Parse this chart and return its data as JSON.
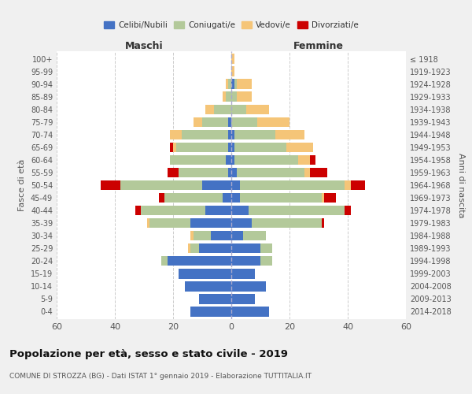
{
  "age_groups": [
    "0-4",
    "5-9",
    "10-14",
    "15-19",
    "20-24",
    "25-29",
    "30-34",
    "35-39",
    "40-44",
    "45-49",
    "50-54",
    "55-59",
    "60-64",
    "65-69",
    "70-74",
    "75-79",
    "80-84",
    "85-89",
    "90-94",
    "95-99",
    "100+"
  ],
  "birth_years": [
    "2014-2018",
    "2009-2013",
    "2004-2008",
    "1999-2003",
    "1994-1998",
    "1989-1993",
    "1984-1988",
    "1979-1983",
    "1974-1978",
    "1969-1973",
    "1964-1968",
    "1959-1963",
    "1954-1958",
    "1949-1953",
    "1944-1948",
    "1939-1943",
    "1934-1938",
    "1929-1933",
    "1924-1928",
    "1919-1923",
    "≤ 1918"
  ],
  "male": {
    "celibi": [
      14,
      11,
      16,
      18,
      22,
      11,
      7,
      14,
      9,
      3,
      10,
      1,
      2,
      1,
      1,
      1,
      0,
      0,
      0,
      0,
      0
    ],
    "coniugati": [
      0,
      0,
      0,
      0,
      2,
      3,
      6,
      14,
      22,
      20,
      28,
      17,
      19,
      18,
      16,
      9,
      6,
      2,
      1,
      0,
      0
    ],
    "vedovi": [
      0,
      0,
      0,
      0,
      0,
      1,
      1,
      1,
      0,
      0,
      0,
      0,
      0,
      1,
      4,
      3,
      3,
      1,
      1,
      0,
      0
    ],
    "divorziati": [
      0,
      0,
      0,
      0,
      0,
      0,
      0,
      0,
      2,
      2,
      7,
      4,
      0,
      1,
      0,
      0,
      0,
      0,
      0,
      0,
      0
    ]
  },
  "female": {
    "nubili": [
      13,
      8,
      12,
      8,
      10,
      10,
      4,
      7,
      6,
      3,
      3,
      2,
      1,
      1,
      1,
      0,
      0,
      0,
      1,
      0,
      0
    ],
    "coniugate": [
      0,
      0,
      0,
      0,
      4,
      4,
      8,
      24,
      33,
      28,
      36,
      23,
      22,
      18,
      14,
      9,
      5,
      2,
      1,
      0,
      0
    ],
    "vedove": [
      0,
      0,
      0,
      0,
      0,
      0,
      0,
      0,
      0,
      1,
      2,
      2,
      4,
      9,
      10,
      11,
      8,
      5,
      5,
      1,
      1
    ],
    "divorziate": [
      0,
      0,
      0,
      0,
      0,
      0,
      0,
      1,
      2,
      4,
      5,
      6,
      2,
      0,
      0,
      0,
      0,
      0,
      0,
      0,
      0
    ]
  },
  "colors": {
    "celibi": "#4472c4",
    "coniugati": "#b3c99a",
    "vedovi": "#f5c578",
    "divorziati": "#cc0000"
  },
  "title": "Popolazione per età, sesso e stato civile - 2019",
  "subtitle": "COMUNE DI STROZZA (BG) - Dati ISTAT 1° gennaio 2019 - Elaborazione TUTTITALIA.IT",
  "xlabel_left": "Maschi",
  "xlabel_right": "Femmine",
  "ylabel_left": "Fasce di età",
  "ylabel_right": "Anni di nascita",
  "xlim": 60,
  "legend_labels": [
    "Celibi/Nubili",
    "Coniugati/e",
    "Vedovi/e",
    "Divorziati/e"
  ],
  "bg_color": "#f0f0f0",
  "plot_bg_color": "#ffffff"
}
